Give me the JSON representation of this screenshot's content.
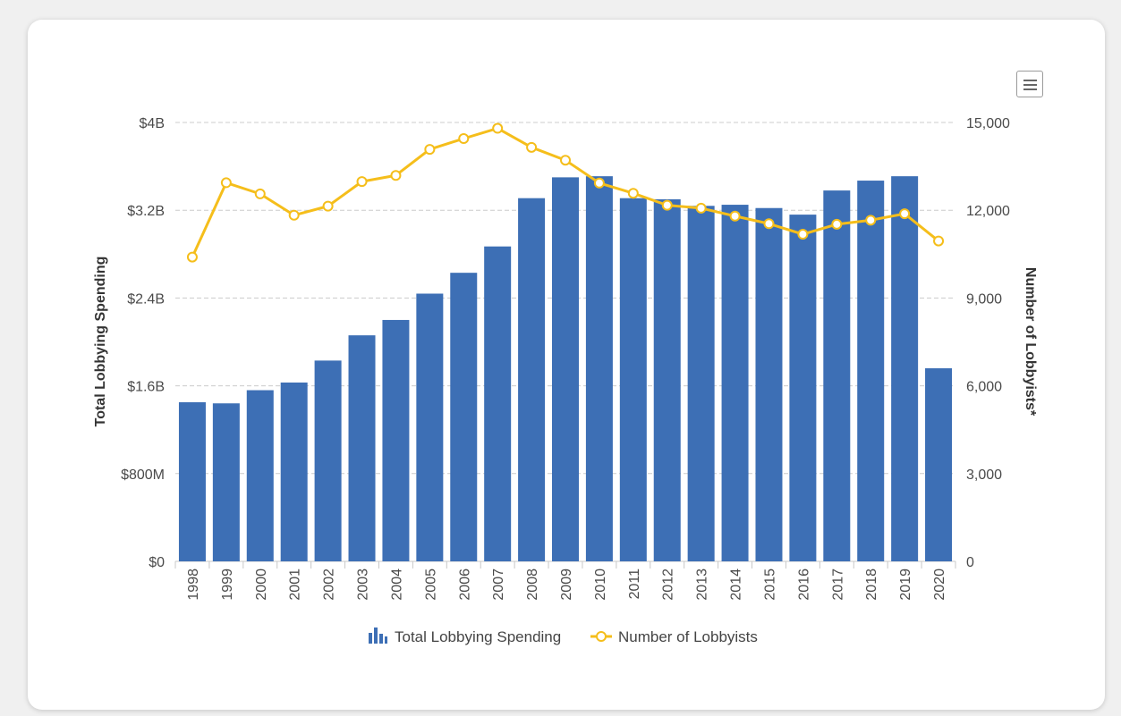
{
  "chart_data": {
    "type": "bar",
    "categories": [
      "1998",
      "1999",
      "2000",
      "2001",
      "2002",
      "2003",
      "2004",
      "2005",
      "2006",
      "2007",
      "2008",
      "2009",
      "2010",
      "2011",
      "2012",
      "2013",
      "2014",
      "2015",
      "2016",
      "2017",
      "2018",
      "2019",
      "2020"
    ],
    "series": [
      {
        "name": "Total Lobbying Spending",
        "type": "bar",
        "axis": "left",
        "color": "#3d6fb5",
        "values": [
          1.45,
          1.44,
          1.56,
          1.63,
          1.83,
          2.06,
          2.2,
          2.44,
          2.63,
          2.87,
          3.31,
          3.5,
          3.51,
          3.31,
          3.3,
          3.24,
          3.25,
          3.22,
          3.16,
          3.38,
          3.47,
          3.51,
          1.76
        ]
      },
      {
        "name": "Number of Lobbyists",
        "type": "line",
        "axis": "right",
        "color": "#f5be1b",
        "values": [
          10400,
          12940,
          12560,
          11830,
          12140,
          12980,
          13190,
          14080,
          14450,
          14800,
          14150,
          13710,
          12930,
          12580,
          12170,
          12070,
          11800,
          11540,
          11180,
          11520,
          11660,
          11880,
          10950
        ]
      }
    ],
    "left_axis": {
      "title": "Total Lobbying Spending",
      "unit": "billions USD",
      "ylim": [
        0,
        4
      ],
      "tick_values": [
        0,
        0.8,
        1.6,
        2.4,
        3.2,
        4
      ],
      "tick_labels": [
        "$0",
        "$800M",
        "$1.6B",
        "$2.4B",
        "$3.2B",
        "$4B"
      ]
    },
    "right_axis": {
      "title": "Number of Lobbyists*",
      "ylim": [
        0,
        15000
      ],
      "tick_values": [
        0,
        3000,
        6000,
        9000,
        12000,
        15000
      ],
      "tick_labels": [
        "0",
        "3,000",
        "6,000",
        "9,000",
        "12,000",
        "15,000"
      ]
    },
    "grid": true,
    "legend": "bottom-center"
  },
  "legend": {
    "spending_label": "Total Lobbying Spending",
    "lobbyists_label": "Number of Lobbyists"
  },
  "colors": {
    "bar": "#3d6fb5",
    "line": "#f5be1b",
    "grid": "#cccccc"
  },
  "icons": {
    "menu": "hamburger-menu-icon",
    "legend_bar": "bar-chart-icon"
  }
}
